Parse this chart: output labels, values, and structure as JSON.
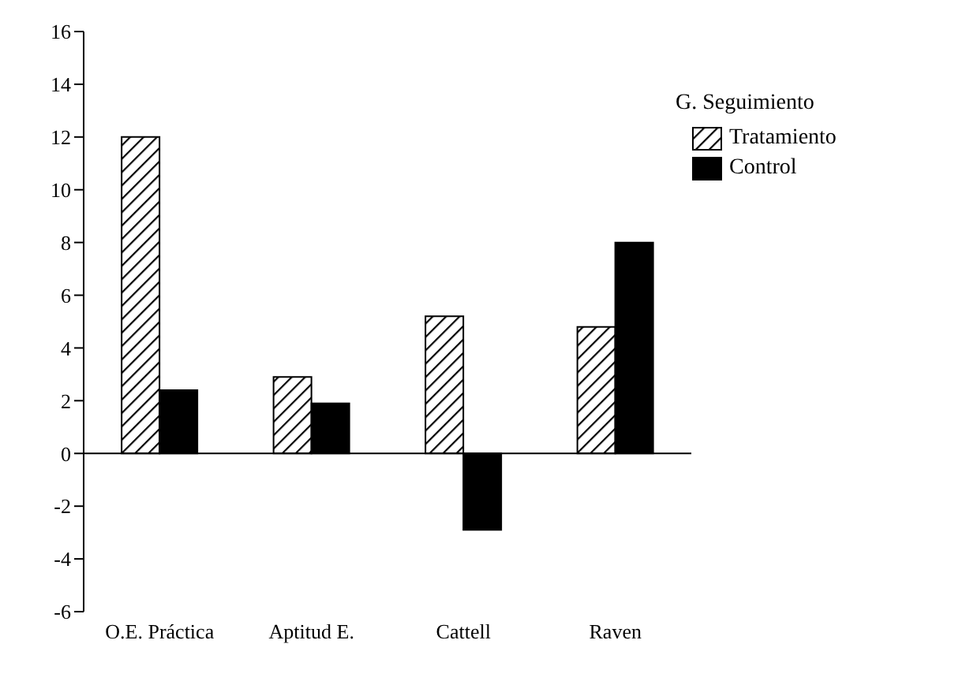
{
  "chart_data": {
    "type": "bar",
    "categories": [
      "O.E. Práctica",
      "Aptitud E.",
      "Cattell",
      "Raven"
    ],
    "series": [
      {
        "name": "Tratamiento",
        "color": "#000000",
        "values": [
          12,
          2.9,
          5.2,
          4.8
        ]
      },
      {
        "name": "Control",
        "color": "#000000",
        "values": [
          2.4,
          1.9,
          -2.9,
          8
        ]
      }
    ],
    "ylim": [
      -6,
      16
    ],
    "yticks": [
      -6,
      -4,
      -2,
      0,
      2,
      4,
      6,
      8,
      10,
      12,
      14,
      16
    ],
    "legend": "top right",
    "legend_title": "G. Seguimiento"
  }
}
